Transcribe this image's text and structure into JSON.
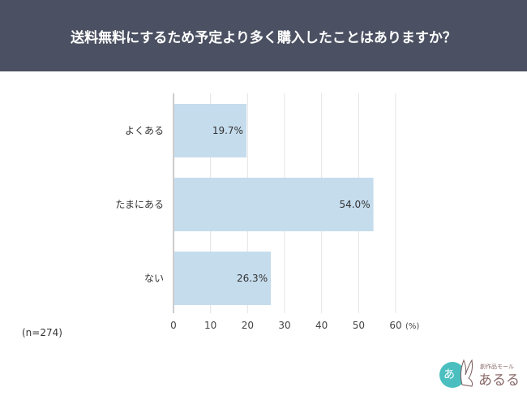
{
  "chart_data": {
    "type": "bar",
    "orientation": "horizontal",
    "title": "送料無料にするため予定より多く購入したことはありますか？",
    "categories": [
      "よくある",
      "たまにある",
      "ない"
    ],
    "values": [
      19.7,
      54.0,
      26.3
    ],
    "data_labels": [
      "19.7%",
      "54.0%",
      "26.3%"
    ],
    "xlim": [
      0,
      60
    ],
    "xticks": [
      0,
      10,
      20,
      30,
      40,
      50,
      60
    ],
    "xtick_labels": [
      "0",
      "10",
      "20",
      "30",
      "40",
      "50",
      "60"
    ],
    "xunit": "(%)",
    "grid": true,
    "bar_color": "#c5dced",
    "note": "(n=274)"
  },
  "logo": {
    "text": "創作品モール あるる"
  }
}
